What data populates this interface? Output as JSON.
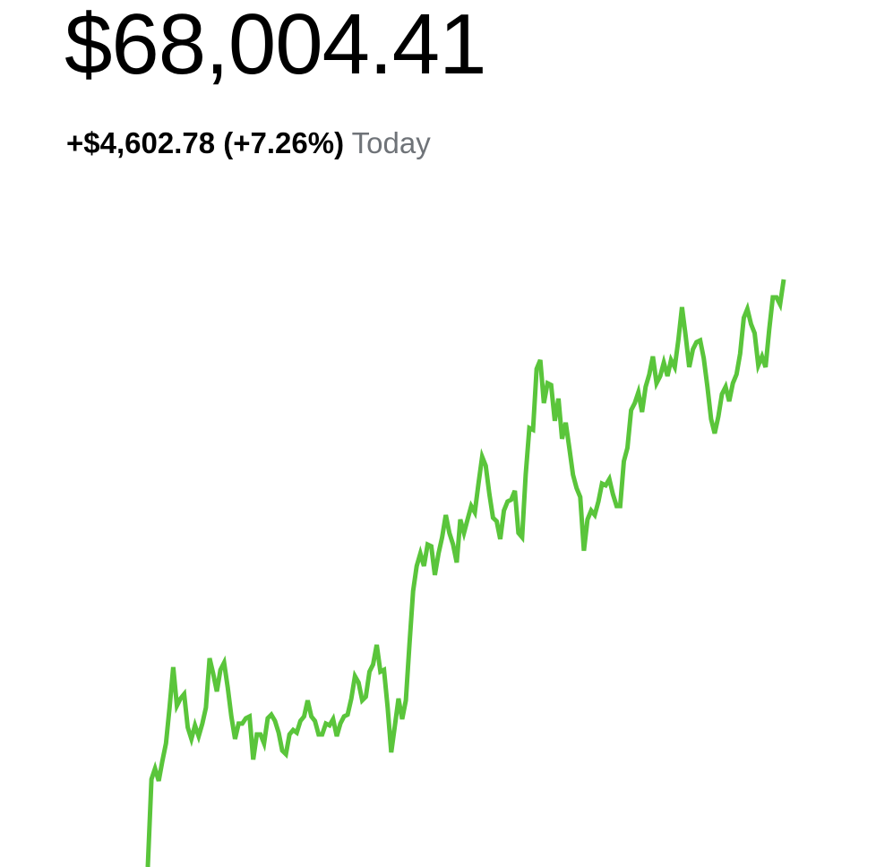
{
  "header": {
    "price": "$68,004.41",
    "change": "+$4,602.78 (+7.26%)",
    "period": "Today"
  },
  "chart_data": {
    "type": "line",
    "color": "#5ac53b",
    "values": [
      63402,
      64090,
      64174,
      64076,
      64230,
      64370,
      64651,
      64967,
      64665,
      64721,
      64756,
      64496,
      64405,
      64511,
      64426,
      64525,
      64651,
      65037,
      64917,
      64777,
      64946,
      65002,
      64805,
      64581,
      64405,
      64525,
      64525,
      64567,
      64581,
      64244,
      64440,
      64440,
      64370,
      64567,
      64595,
      64546,
      64454,
      64314,
      64286,
      64440,
      64475,
      64454,
      64546,
      64581,
      64707,
      64581,
      64546,
      64440,
      64440,
      64525,
      64511,
      64560,
      64426,
      64525,
      64581,
      64595,
      64721,
      64896,
      64847,
      64707,
      64735,
      64932,
      64988,
      65142,
      64932,
      64946,
      64651,
      64300,
      64511,
      64721,
      64560,
      64707,
      65142,
      65563,
      65759,
      65858,
      65759,
      65928,
      65914,
      65689,
      65858,
      65984,
      66159,
      66019,
      65928,
      65787,
      66124,
      66019,
      66124,
      66229,
      66180,
      66405,
      66615,
      66545,
      66321,
      66138,
      66110,
      65970,
      66194,
      66265,
      66279,
      66349,
      66019,
      65984,
      66475,
      66840,
      66826,
      67303,
      67373,
      67036,
      67191,
      67177,
      66896,
      67071,
      66756,
      66882,
      66685,
      66475,
      66370,
      66300,
      65879,
      66124,
      66194,
      66159,
      66265,
      66405,
      66391,
      66440,
      66321,
      66229,
      66229,
      66580,
      66685,
      66980,
      67036,
      67120,
      66966,
      67163,
      67261,
      67401,
      67191,
      67247,
      67352,
      67247,
      67373,
      67317,
      67527,
      67787,
      67562,
      67317,
      67457,
      67513,
      67527,
      67387,
      67163,
      66910,
      66798,
      66931,
      67106,
      67163,
      67050,
      67191,
      67261,
      67422,
      67703,
      67773,
      67654,
      67583,
      67331,
      67401,
      67317,
      67612,
      67864,
      67864,
      67808,
      68004
    ]
  }
}
